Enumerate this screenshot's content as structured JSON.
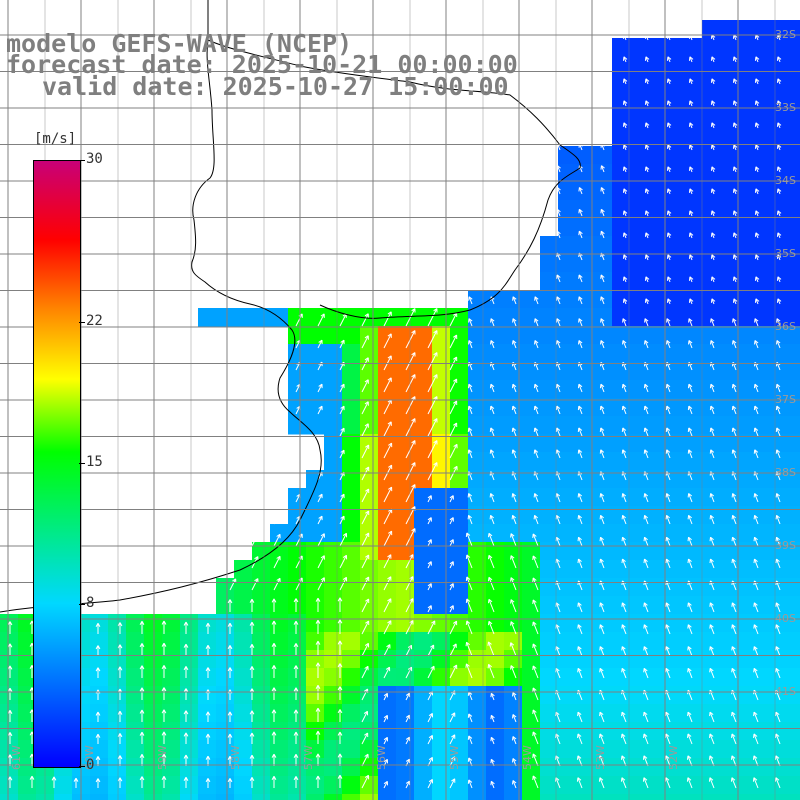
{
  "title": {
    "line1": "modelo GEFS-WAVE (NCEP)",
    "line2": "forecast date: 2025-10-21 00:00:00",
    "line3": "valid date: 2025-10-27 15:00:00"
  },
  "colorbar": {
    "unit": "[m/s]",
    "labels": [
      "30",
      "22",
      "15",
      "8",
      "0"
    ],
    "values": [
      30,
      22,
      15,
      8,
      0
    ],
    "vmin": 0,
    "vmax": 30,
    "colors": [
      "#0000ff",
      "#00d8ff",
      "#00ff00",
      "#ffff00",
      "#ff8000",
      "#ff0000",
      "#c80078"
    ]
  },
  "map": {
    "lat_labels": [
      "32S",
      "33S",
      "34S",
      "35S",
      "36S",
      "37S",
      "38S",
      "39S",
      "40S",
      "41S"
    ],
    "lon_labels": [
      "61W",
      "60W",
      "59W",
      "58W",
      "57W",
      "56W",
      "55W",
      "54W",
      "53W",
      "52W"
    ],
    "land_color": "#ffffff",
    "grid_color": "#808080",
    "arrow_color": "#ffffff"
  }
}
